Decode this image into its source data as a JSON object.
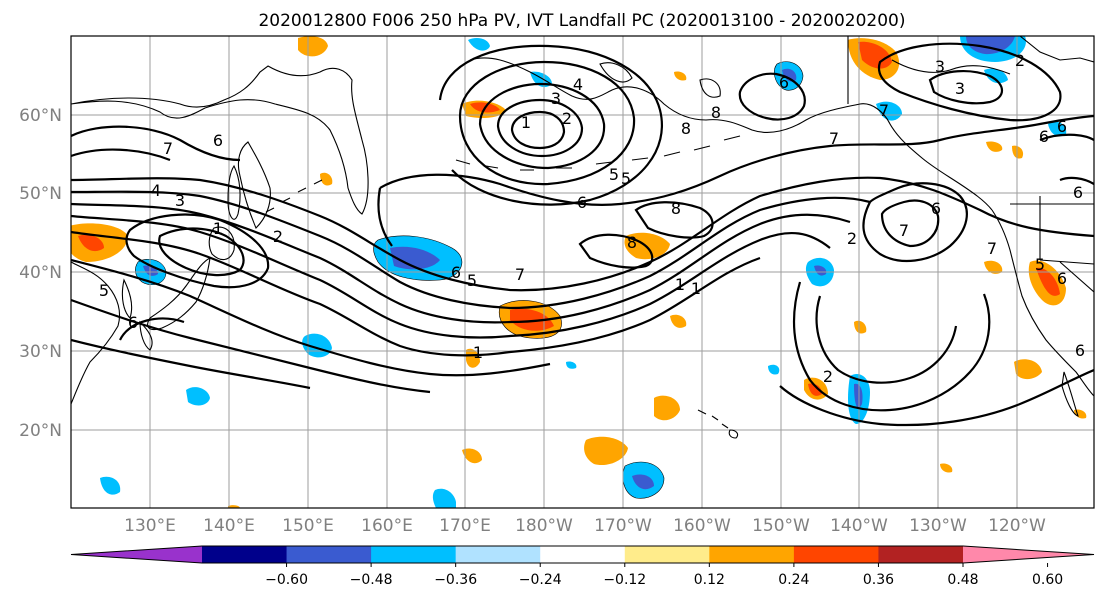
{
  "title": "2020012800 F006 250 hPa PV, IVT Landfall PC (2020013100 - 2020020200)",
  "lat_labels": [
    "60°N",
    "50°N",
    "40°N",
    "30°N",
    "20°N"
  ],
  "lon_labels": [
    "130°E",
    "140°E",
    "150°E",
    "160°E",
    "170°E",
    "180°W",
    "170°W",
    "160°W",
    "150°W",
    "140°W",
    "130°W",
    "120°W"
  ],
  "colorbar": {
    "ticks": [
      "−0.60",
      "−0.48",
      "−0.36",
      "−0.24",
      "−0.12",
      "0.12",
      "0.24",
      "0.36",
      "0.48",
      "0.60"
    ],
    "colors": [
      "#9932cc",
      "#00008b",
      "#3a5bd0",
      "#00bfff",
      "#b0e2ff",
      "#ffffff",
      "#ffec8b",
      "#ffa500",
      "#ff4500",
      "#b22222",
      "#ff88aa"
    ]
  },
  "contour_labels": [
    "1",
    "2",
    "3",
    "4",
    "5",
    "6",
    "7",
    "8",
    "1",
    "2",
    "6",
    "7",
    "8",
    "5",
    "6",
    "7",
    "6",
    "5",
    "1",
    "2",
    "3",
    "4",
    "5",
    "6",
    "7",
    "1",
    "2",
    "6",
    "7",
    "6",
    "8",
    "3",
    "6",
    "1",
    "2",
    "3",
    "5",
    "6",
    "8",
    "7",
    "6",
    "6"
  ]
}
